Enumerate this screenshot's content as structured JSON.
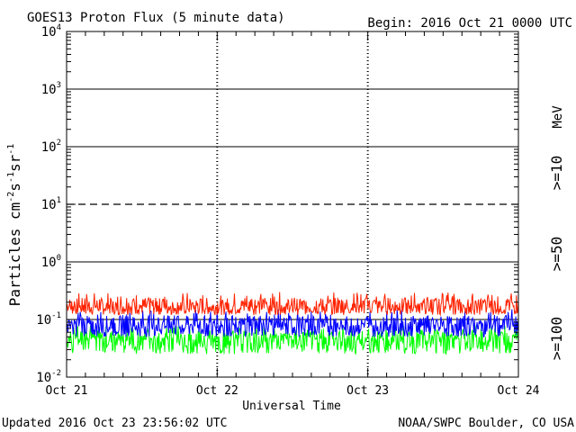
{
  "header": {
    "title": "GOES13 Proton Flux (5 minute data)",
    "begin": "Begin: 2016 Oct 21 0000 UTC"
  },
  "footer": {
    "updated": "Updated 2016 Oct 23 23:56:02 UTC",
    "credit": "NOAA/SWPC Boulder, CO USA"
  },
  "chart_data": {
    "type": "line",
    "title": "GOES13 Proton Flux (5 minute data)",
    "xlabel": "Universal Time",
    "ylabel": "Particles cm-2s-1sr-1",
    "y_scale": "log",
    "ylim": [
      0.01,
      10000
    ],
    "y_ticks": [
      {
        "base": "10",
        "exp": "4",
        "value": 10000
      },
      {
        "base": "10",
        "exp": "3",
        "value": 1000
      },
      {
        "base": "10",
        "exp": "2",
        "value": 100
      },
      {
        "base": "10",
        "exp": "1",
        "value": 10
      },
      {
        "base": "10",
        "exp": "0",
        "value": 1
      },
      {
        "base": "10",
        "exp": "-1",
        "value": 0.1
      },
      {
        "base": "10",
        "exp": "-2",
        "value": 0.01
      }
    ],
    "x_ticks": [
      "Oct 21",
      "Oct 22",
      "Oct 23",
      "Oct 24"
    ],
    "xlim_days": [
      0,
      3
    ],
    "threshold_line": {
      "value": 10,
      "style": "dashed"
    },
    "right_label_unit": "MeV",
    "series": [
      {
        "name": ">=10",
        "color": "#ff2200",
        "typical_range": [
          0.12,
          0.3
        ],
        "mean": 0.17
      },
      {
        "name": ">=50",
        "color": "#0000ff",
        "typical_range": [
          0.05,
          0.15
        ],
        "mean": 0.08
      },
      {
        "name": ">=100",
        "color": "#00ff00",
        "typical_range": [
          0.025,
          0.08
        ],
        "mean": 0.045
      }
    ],
    "grid": true,
    "legend": "right, vertical text"
  }
}
